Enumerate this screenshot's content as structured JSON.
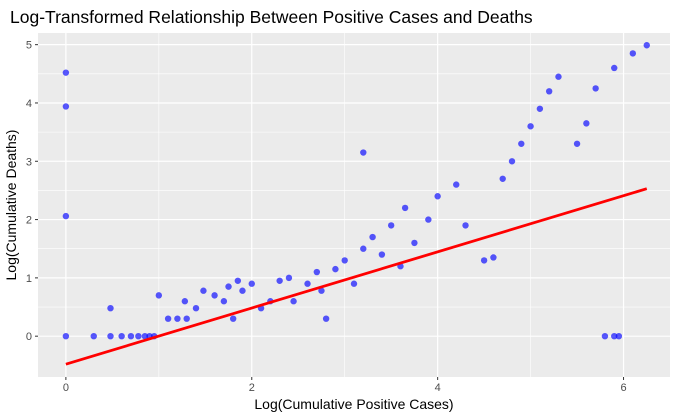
{
  "chart_data": {
    "type": "scatter",
    "title": "Log-Transformed Relationship Between Positive Cases and Deaths",
    "xlabel": "Log(Cumulative Positive Cases)",
    "ylabel": "Log(Cumulative Deaths)",
    "xlim": [
      -0.3,
      6.5
    ],
    "ylim": [
      -0.7,
      5.2
    ],
    "x_ticks": [
      0,
      2,
      4,
      6
    ],
    "y_ticks": [
      0,
      1,
      2,
      3,
      4,
      5
    ],
    "grid": true,
    "legend": "none",
    "colors": {
      "points": "#0000ff",
      "regression_line": "#ff0000",
      "panel": "#ebebeb",
      "grid": "#ffffff"
    },
    "regression_line": {
      "x": [
        0,
        6.25
      ],
      "y": [
        -0.48,
        2.53
      ]
    },
    "series": [
      {
        "points": [
          [
            0,
            4.52
          ],
          [
            0,
            3.94
          ],
          [
            0,
            2.06
          ],
          [
            0,
            0
          ],
          [
            0.3,
            0
          ],
          [
            0.48,
            0
          ],
          [
            0.48,
            0.48
          ],
          [
            0.6,
            0
          ],
          [
            0.7,
            0
          ],
          [
            0.78,
            0
          ],
          [
            0.85,
            0
          ],
          [
            0.9,
            0
          ],
          [
            0.95,
            0
          ],
          [
            1.0,
            0.7
          ],
          [
            1.1,
            0.3
          ],
          [
            1.2,
            0.3
          ],
          [
            1.28,
            0.6
          ],
          [
            1.3,
            0.3
          ],
          [
            1.4,
            0.48
          ],
          [
            1.48,
            0.78
          ],
          [
            1.6,
            0.7
          ],
          [
            1.7,
            0.6
          ],
          [
            1.75,
            0.85
          ],
          [
            1.8,
            0.3
          ],
          [
            1.85,
            0.95
          ],
          [
            1.9,
            0.78
          ],
          [
            2.0,
            0.9
          ],
          [
            2.1,
            0.48
          ],
          [
            2.2,
            0.6
          ],
          [
            2.3,
            0.95
          ],
          [
            2.4,
            1.0
          ],
          [
            2.45,
            0.6
          ],
          [
            2.6,
            0.9
          ],
          [
            2.7,
            1.1
          ],
          [
            2.75,
            0.78
          ],
          [
            2.8,
            0.3
          ],
          [
            2.9,
            1.15
          ],
          [
            3.0,
            1.3
          ],
          [
            3.1,
            0.9
          ],
          [
            3.2,
            3.15
          ],
          [
            3.2,
            1.5
          ],
          [
            3.3,
            1.7
          ],
          [
            3.4,
            1.4
          ],
          [
            3.5,
            1.9
          ],
          [
            3.6,
            1.2
          ],
          [
            3.65,
            2.2
          ],
          [
            3.75,
            1.6
          ],
          [
            3.9,
            2.0
          ],
          [
            4.0,
            2.4
          ],
          [
            4.2,
            2.6
          ],
          [
            4.3,
            1.9
          ],
          [
            4.5,
            1.3
          ],
          [
            4.6,
            1.35
          ],
          [
            4.7,
            2.7
          ],
          [
            4.8,
            3.0
          ],
          [
            4.9,
            3.3
          ],
          [
            5.0,
            3.6
          ],
          [
            5.1,
            3.9
          ],
          [
            5.2,
            4.2
          ],
          [
            5.3,
            4.45
          ],
          [
            5.5,
            3.3
          ],
          [
            5.6,
            3.65
          ],
          [
            5.7,
            4.25
          ],
          [
            5.9,
            4.6
          ],
          [
            6.1,
            4.85
          ],
          [
            6.25,
            4.99
          ],
          [
            5.8,
            0
          ],
          [
            5.9,
            0
          ],
          [
            5.95,
            0
          ]
        ]
      }
    ]
  }
}
